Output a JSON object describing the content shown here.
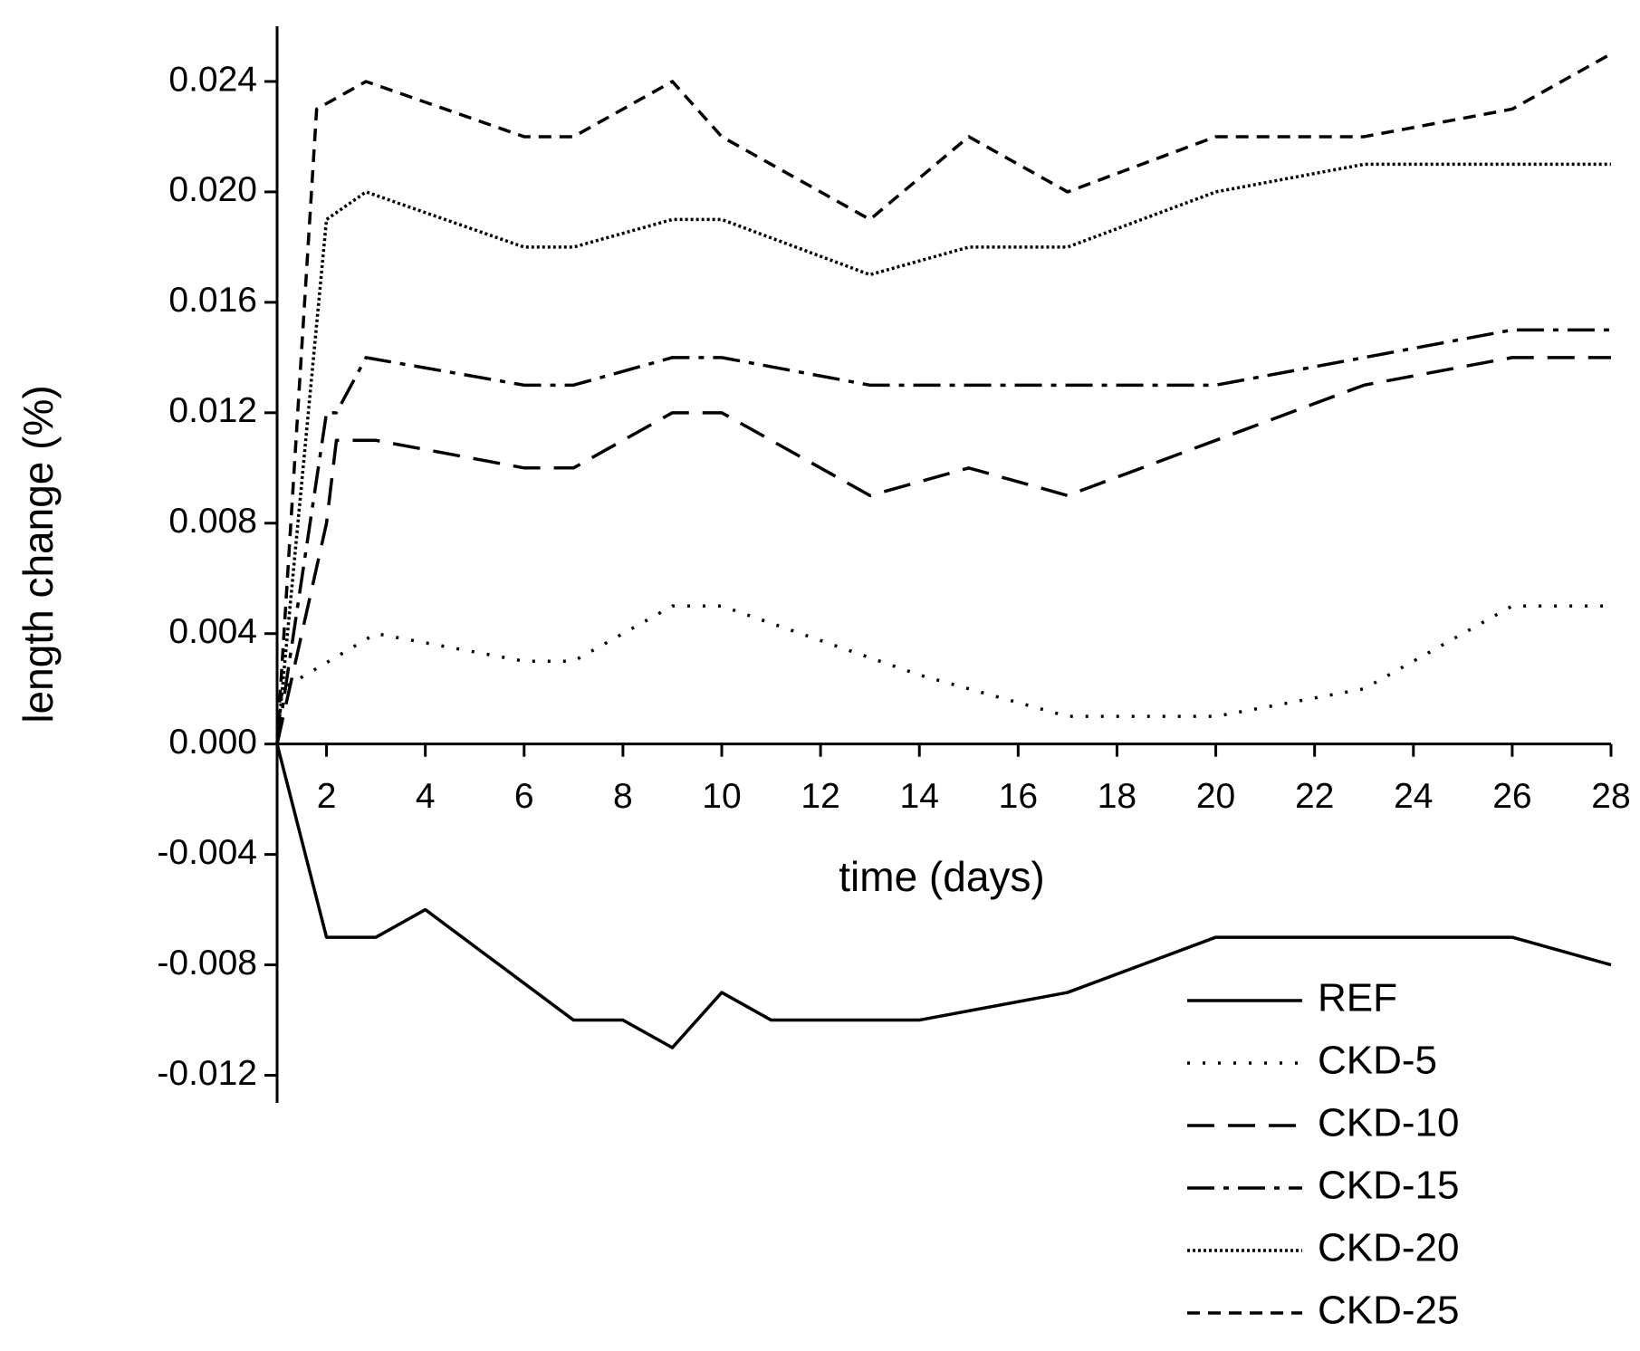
{
  "chart_data": {
    "type": "line",
    "x_label": "time (days)",
    "y_label": "length change (%)",
    "xlim": [
      1,
      28
    ],
    "xticks": [
      2,
      4,
      6,
      8,
      10,
      12,
      14,
      16,
      18,
      20,
      22,
      24,
      26,
      28
    ],
    "ylim": [
      -0.013,
      0.026
    ],
    "yticks": [
      -0.012,
      -0.008,
      -0.004,
      {
        "value": 0,
        "label": "0.000"
      },
      0.004,
      0.008,
      0.012,
      0.016,
      {
        "value": 0.02,
        "label": "0.020"
      },
      0.024
    ],
    "legend": "lower right",
    "series": [
      {
        "name": "REF",
        "color": "#000000",
        "dash": "none",
        "x": [
          1,
          2,
          3,
          4,
          7,
          8,
          9,
          10,
          11,
          14,
          17,
          20,
          26,
          28
        ],
        "values": [
          0,
          -0.007,
          -0.007,
          -0.006,
          -0.01,
          -0.01,
          -0.011,
          -0.009,
          -0.01,
          -0.01,
          -0.009,
          -0.007,
          -0.007,
          -0.008
        ]
      },
      {
        "name": "CKD-5",
        "color": "#000000",
        "dash": "3 14",
        "x": [
          1,
          1.1,
          3,
          6,
          7,
          9,
          10,
          14,
          17,
          20,
          23,
          26,
          28
        ],
        "values": [
          0,
          0.002,
          0.004,
          0.003,
          0.003,
          0.005,
          0.005,
          0.0025,
          0.001,
          0.001,
          0.002,
          0.005,
          0.005
        ]
      },
      {
        "name": "CKD-10",
        "color": "#000000",
        "dash": "30 15",
        "x": [
          1,
          2,
          2.2,
          3,
          6,
          7,
          9,
          10,
          13,
          15,
          17,
          20,
          23,
          26,
          28
        ],
        "values": [
          0,
          0.008,
          0.011,
          0.011,
          0.01,
          0.01,
          0.012,
          0.012,
          0.009,
          0.01,
          0.009,
          0.011,
          0.013,
          0.014,
          0.014
        ]
      },
      {
        "name": "CKD-15",
        "color": "#000000",
        "dash": "30 10 6 10",
        "x": [
          1,
          2,
          2.2,
          2.8,
          6,
          7,
          9,
          10,
          13,
          17,
          20,
          26,
          28
        ],
        "values": [
          0,
          0.012,
          0.012,
          0.014,
          0.013,
          0.013,
          0.014,
          0.014,
          0.013,
          0.013,
          0.013,
          0.015,
          0.015
        ]
      },
      {
        "name": "CKD-20",
        "color": "#000000",
        "dash": "3 3",
        "x": [
          1,
          2,
          2.8,
          6,
          7,
          9,
          10,
          13,
          15,
          17,
          20,
          23,
          28
        ],
        "values": [
          0,
          0.019,
          0.02,
          0.018,
          0.018,
          0.019,
          0.019,
          0.017,
          0.018,
          0.018,
          0.02,
          0.021,
          0.021
        ]
      },
      {
        "name": "CKD-25",
        "color": "#000000",
        "dash": "14 9",
        "x": [
          1,
          1.8,
          2.8,
          6,
          7,
          9,
          10,
          13,
          15,
          17,
          20,
          23,
          26,
          28
        ],
        "values": [
          0,
          0.023,
          0.024,
          0.022,
          0.022,
          0.024,
          0.022,
          0.019,
          0.022,
          0.02,
          0.022,
          0.022,
          0.023,
          0.025
        ]
      }
    ]
  }
}
